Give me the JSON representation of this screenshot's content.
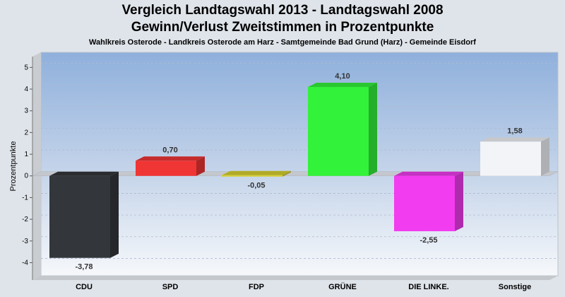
{
  "header": {
    "title": "Vergleich Landtagswahl 2013 - Landtagswahl 2008",
    "subtitle": "Gewinn/Verlust Zweitstimmen in Prozentpunkte",
    "caption": "Wahlkreis Osterode - Landkreis Osterode am Harz - Samtgemeinde Bad Grund (Harz) - Gemeinde Eisdorf"
  },
  "chart_data": {
    "type": "bar",
    "title": "Vergleich Landtagswahl 2013 - Landtagswahl 2008",
    "subtitle": "Gewinn/Verlust Zweitstimmen in Prozentpunkte",
    "xlabel": "",
    "ylabel": "Prozentpunkte",
    "ylim": [
      -4.8,
      5.5
    ],
    "yticks": [
      5,
      4,
      3,
      2,
      1,
      0,
      -1,
      -2,
      -3,
      -4
    ],
    "grid": true,
    "categories": [
      "CDU",
      "SPD",
      "FDP",
      "GRÜNE",
      "DIE LINKE.",
      "Sonstige"
    ],
    "values": [
      -3.78,
      0.7,
      -0.05,
      4.1,
      -2.55,
      1.58
    ],
    "value_labels": [
      "-3,78",
      "0,70",
      "-0,05",
      "4,10",
      "-2,55",
      "1,58"
    ],
    "colors": [
      "#33363a",
      "#f03535",
      "#d8d030",
      "#33f23a",
      "#f23cf0",
      "#f2f4f8"
    ]
  }
}
